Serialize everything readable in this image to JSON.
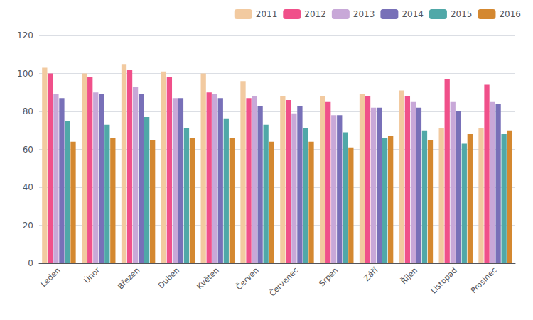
{
  "chart_data": {
    "type": "bar",
    "categories": [
      "Leden",
      "Únor",
      "Březen",
      "Duben",
      "Květen",
      "Červen",
      "Červenec",
      "Srpen",
      "Září",
      "Říjen",
      "Listopad",
      "Prosinec"
    ],
    "series": [
      {
        "name": "2011",
        "color": "#F2CAA0",
        "values": [
          103,
          100,
          105,
          101,
          100,
          96,
          88,
          88,
          89,
          91,
          71,
          71
        ]
      },
      {
        "name": "2012",
        "color": "#F0508A",
        "values": [
          100,
          98,
          102,
          98,
          90,
          87,
          86,
          85,
          88,
          88,
          97,
          94
        ]
      },
      {
        "name": "2013",
        "color": "#C8A8D8",
        "values": [
          89,
          90,
          93,
          87,
          89,
          88,
          79,
          78,
          82,
          85,
          85,
          85
        ]
      },
      {
        "name": "2014",
        "color": "#7870B8",
        "values": [
          87,
          89,
          89,
          87,
          87,
          83,
          83,
          78,
          82,
          82,
          80,
          84
        ]
      },
      {
        "name": "2015",
        "color": "#50A8A8",
        "values": [
          75,
          73,
          77,
          71,
          76,
          73,
          71,
          69,
          66,
          70,
          63,
          68
        ]
      },
      {
        "name": "2016",
        "color": "#D48830",
        "values": [
          64,
          66,
          65,
          66,
          66,
          64,
          64,
          61,
          67,
          65,
          68,
          70
        ]
      }
    ],
    "ylim": [
      0,
      120
    ],
    "yticks": [
      0,
      20,
      40,
      60,
      80,
      100,
      120
    ],
    "grid": true,
    "legend": "upper right"
  }
}
